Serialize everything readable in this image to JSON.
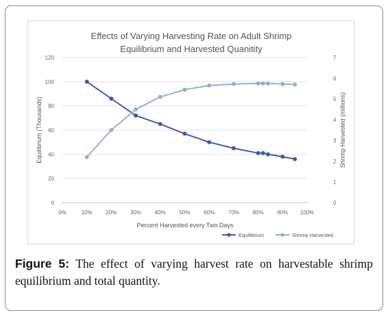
{
  "figure": {
    "label": "Figure 5:",
    "caption": "The effect of varying harvest rate on harvestable shrimp equilibrium and total quantity."
  },
  "chart_data": {
    "type": "line",
    "title_lines": [
      "Effects of Varying Harvesting Rate on Adult Shrimp",
      "Equilibrium and Harvested Quanitity"
    ],
    "xlabel": "Percent Harvested every Two Days",
    "ylabel_left": "Equilibrium (Thousands)",
    "ylabel_right": "Shrimp Harvested (millions)",
    "x_ticks": [
      "0%",
      "10%",
      "20%",
      "30%",
      "40%",
      "50%",
      "60%",
      "70%",
      "80%",
      "90%",
      "100%"
    ],
    "xlim": [
      0,
      100
    ],
    "y_left_ticks": [
      "0",
      "20",
      "40",
      "60",
      "80",
      "100",
      "120"
    ],
    "ylim_left": [
      0,
      120
    ],
    "y_right_ticks": [
      "0",
      "1",
      "2",
      "3",
      "4",
      "5",
      "6",
      "7"
    ],
    "ylim_right": [
      0,
      7
    ],
    "grid": true,
    "legend_position": "bottom-right",
    "series": [
      {
        "name": "Equilibrium",
        "axis": "left",
        "color": "#3a5fa8",
        "x": [
          10,
          20,
          30,
          40,
          50,
          60,
          70,
          80,
          82,
          84,
          90,
          95
        ],
        "y": [
          100,
          86,
          72,
          65,
          57,
          50,
          45,
          41,
          41,
          40,
          38,
          36
        ]
      },
      {
        "name": "Shrimp Harvested",
        "axis": "right",
        "color": "#97add6",
        "x": [
          10,
          20,
          30,
          40,
          50,
          60,
          70,
          80,
          82,
          84,
          90,
          95
        ],
        "y": [
          2.2,
          3.5,
          4.5,
          5.1,
          5.45,
          5.65,
          5.72,
          5.75,
          5.75,
          5.75,
          5.72,
          5.7
        ]
      }
    ]
  }
}
